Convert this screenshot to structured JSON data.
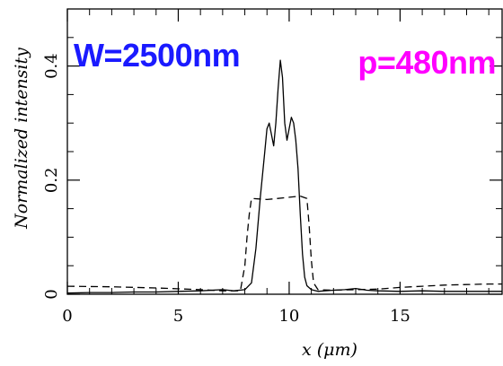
{
  "chart_data": {
    "type": "line",
    "xlabel": "x (μm)",
    "ylabel": "Normalized intensity",
    "xlim": [
      0,
      19.6
    ],
    "ylim": [
      0,
      0.5
    ],
    "grid": false,
    "x_ticks": [
      {
        "value": 0,
        "label": "0"
      },
      {
        "value": 5,
        "label": "5"
      },
      {
        "value": 10,
        "label": "10"
      },
      {
        "value": 15,
        "label": "15"
      }
    ],
    "y_ticks": [
      {
        "value": 0,
        "label": "0"
      },
      {
        "value": 0.2,
        "label": "0.2"
      },
      {
        "value": 0.4,
        "label": "0.4"
      }
    ],
    "annotations": [
      {
        "text": "W=2500nm",
        "color": "#1a1aff",
        "anchor": "top-left"
      },
      {
        "text": "p=480nm",
        "color": "#ff00ff",
        "anchor": "top-right"
      }
    ],
    "series": [
      {
        "style": "solid",
        "x": [
          0,
          1,
          2,
          3,
          4,
          5,
          6,
          7,
          7.5,
          8.0,
          8.3,
          8.5,
          8.7,
          8.9,
          9.0,
          9.1,
          9.2,
          9.3,
          9.4,
          9.5,
          9.6,
          9.7,
          9.8,
          9.9,
          10.0,
          10.1,
          10.2,
          10.3,
          10.4,
          10.5,
          10.6,
          10.7,
          10.8,
          11.0,
          11.3,
          11.6,
          12.0,
          12.5,
          13.0,
          13.5,
          14.0,
          15.0,
          16.0,
          17.0,
          18.0,
          19.0,
          19.6
        ],
        "y": [
          0.002,
          0.003,
          0.003,
          0.004,
          0.004,
          0.005,
          0.006,
          0.008,
          0.006,
          0.008,
          0.02,
          0.08,
          0.17,
          0.25,
          0.29,
          0.3,
          0.28,
          0.26,
          0.3,
          0.36,
          0.41,
          0.38,
          0.3,
          0.27,
          0.29,
          0.31,
          0.3,
          0.27,
          0.22,
          0.14,
          0.07,
          0.03,
          0.015,
          0.008,
          0.005,
          0.006,
          0.007,
          0.008,
          0.01,
          0.007,
          0.006,
          0.005,
          0.006,
          0.005,
          0.005,
          0.005,
          0.005
        ]
      },
      {
        "style": "dashed",
        "x": [
          0,
          2,
          4,
          6,
          7,
          7.8,
          8.0,
          8.1,
          8.2,
          8.3,
          9.0,
          9.5,
          10.0,
          10.5,
          10.8,
          10.9,
          11.0,
          11.1,
          11.3,
          12.0,
          13.0,
          14.0,
          15.0,
          16.0,
          17.0,
          18.0,
          19.0,
          19.6
        ],
        "y": [
          0.014,
          0.013,
          0.011,
          0.008,
          0.006,
          0.006,
          0.05,
          0.1,
          0.14,
          0.168,
          0.166,
          0.168,
          0.17,
          0.172,
          0.168,
          0.12,
          0.06,
          0.02,
          0.008,
          0.007,
          0.008,
          0.009,
          0.012,
          0.014,
          0.016,
          0.017,
          0.018,
          0.018
        ]
      }
    ]
  }
}
